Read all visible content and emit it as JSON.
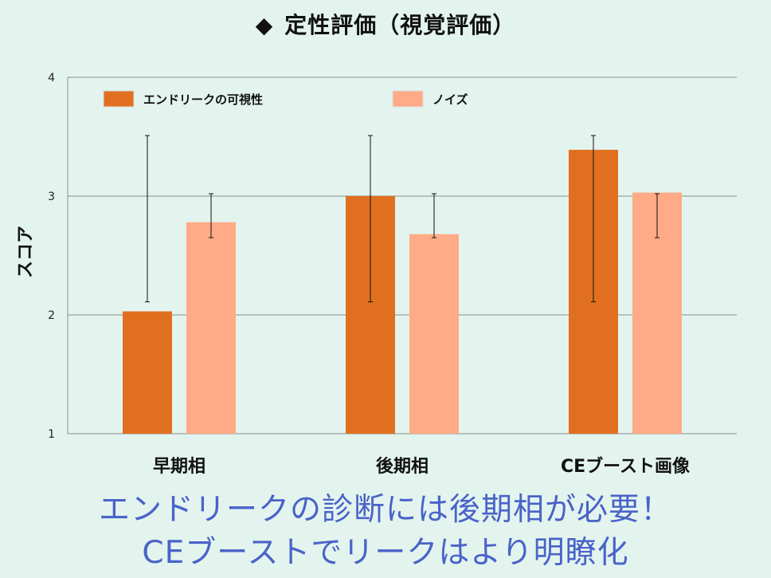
{
  "slide": {
    "bullet": "◆",
    "title": "定性評価（視覚評価）",
    "caption_line1": "エンドリークの診断には後期相が必要！",
    "caption_line2": "CEブーストでリークはより明瞭化"
  },
  "colors": {
    "background": "#e3f4ee",
    "series1": "#e07020",
    "series2": "#ffab87",
    "caption": "#4a63c9"
  },
  "chart_data": {
    "type": "bar",
    "categories": [
      "早期相",
      "後期相",
      "CEブースト画像"
    ],
    "series": [
      {
        "name": "エンドリークの可視性",
        "values": [
          2.03,
          3.0,
          3.39
        ],
        "error_high": [
          3.51,
          3.51,
          3.51
        ],
        "error_low": [
          2.11,
          2.11,
          2.11
        ]
      },
      {
        "name": "ノイズ",
        "values": [
          2.78,
          2.68,
          3.03
        ],
        "error_high": [
          3.02,
          3.02,
          3.02
        ],
        "error_low": [
          2.65,
          2.65,
          2.65
        ]
      }
    ],
    "ylabel": "スコア",
    "ylim": [
      1,
      4
    ],
    "yticks": [
      "1",
      "2",
      "3",
      "4"
    ],
    "grid": true,
    "legend_position": "top"
  }
}
